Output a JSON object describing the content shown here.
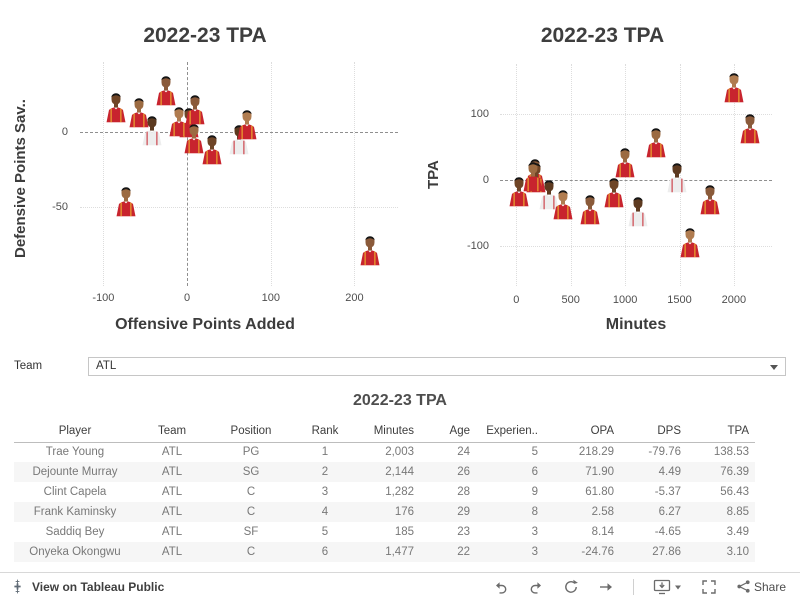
{
  "filter": {
    "label": "Team",
    "value": "ATL"
  },
  "toolbar": {
    "attribution": "View on Tableau Public",
    "share_label": "Share"
  },
  "accent": {
    "jersey_red": "#c8242e",
    "zero_line": "#8f8f8f",
    "grid": "#dddddd"
  },
  "chart_data": [
    {
      "type": "scatter",
      "title": "2022-23 TPA",
      "xlabel": "Offensive Points Added",
      "ylabel": "Defensive Points Sav..",
      "x_ticks": [
        -100,
        0,
        100,
        200
      ],
      "y_ticks": [
        0,
        -50
      ],
      "xlim": [
        -128,
        252
      ],
      "ylim": [
        -103,
        47
      ],
      "grid": "dotted",
      "legend": false,
      "zero_lines": {
        "x": true,
        "y": true
      },
      "marker": "player-photo",
      "points": [
        {
          "name": "Onyeka Okongwu",
          "x": -24.76,
          "y": 27.86
        },
        {
          "name": "Frank Kaminsky",
          "x": 2.58,
          "y": 6.27
        },
        {
          "name": "Saddiq Bey",
          "x": 8.14,
          "y": -4.65
        },
        {
          "name": "Clint Capela",
          "x": 61.8,
          "y": -5.37
        },
        {
          "name": "Dejounte Murray",
          "x": 71.9,
          "y": 4.49
        },
        {
          "name": "Trae Young",
          "x": 218.29,
          "y": -79.76
        },
        {
          "name": "",
          "x": -85,
          "y": 16
        },
        {
          "name": "",
          "x": -58,
          "y": 13
        },
        {
          "name": "",
          "x": -42,
          "y": 1
        },
        {
          "name": "",
          "x": -10,
          "y": 7
        },
        {
          "name": "",
          "x": 9,
          "y": 15
        },
        {
          "name": "",
          "x": 30,
          "y": -12
        },
        {
          "name": "",
          "x": -73,
          "y": -47
        }
      ]
    },
    {
      "type": "scatter",
      "title": "2022-23 TPA",
      "xlabel": "Minutes",
      "ylabel": "TPA",
      "x_ticks": [
        0,
        500,
        1000,
        1500,
        2000
      ],
      "y_ticks": [
        -100,
        0,
        100
      ],
      "xlim": [
        -150,
        2350
      ],
      "ylim": [
        -160,
        175
      ],
      "grid": "dotted",
      "legend": false,
      "zero_lines": {
        "x": false,
        "y": true
      },
      "marker": "player-photo",
      "points": [
        {
          "name": "Frank Kaminsky",
          "x": 176,
          "y": 8.85
        },
        {
          "name": "Saddiq Bey",
          "x": 185,
          "y": 3.49
        },
        {
          "name": "Clint Capela",
          "x": 1282,
          "y": 56.43
        },
        {
          "name": "Onyeka Okongwu",
          "x": 1477,
          "y": 3.1
        },
        {
          "name": "Trae Young",
          "x": 2003,
          "y": 138.53
        },
        {
          "name": "Dejounte Murray",
          "x": 2144,
          "y": 76.39
        },
        {
          "name": "",
          "x": 25,
          "y": -18
        },
        {
          "name": "",
          "x": 150,
          "y": 5
        },
        {
          "name": "",
          "x": 300,
          "y": -22
        },
        {
          "name": "",
          "x": 430,
          "y": -38
        },
        {
          "name": "",
          "x": 680,
          "y": -45
        },
        {
          "name": "",
          "x": 900,
          "y": -20
        },
        {
          "name": "",
          "x": 1000,
          "y": 26
        },
        {
          "name": "",
          "x": 1120,
          "y": -48
        },
        {
          "name": "",
          "x": 1600,
          "y": -95
        },
        {
          "name": "",
          "x": 1780,
          "y": -30
        }
      ]
    },
    {
      "type": "table",
      "title": "2022-23 TPA",
      "columns": [
        "Player",
        "Team",
        "Position",
        "Rank",
        "Minutes",
        "Age",
        "Experien..",
        "OPA",
        "DPS",
        "TPA"
      ],
      "rows": [
        [
          "Trae Young",
          "ATL",
          "PG",
          "1",
          "2,003",
          "24",
          "5",
          "218.29",
          "-79.76",
          "138.53"
        ],
        [
          "Dejounte Murray",
          "ATL",
          "SG",
          "2",
          "2,144",
          "26",
          "6",
          "71.90",
          "4.49",
          "76.39"
        ],
        [
          "Clint Capela",
          "ATL",
          "C",
          "3",
          "1,282",
          "28",
          "9",
          "61.80",
          "-5.37",
          "56.43"
        ],
        [
          "Frank Kaminsky",
          "ATL",
          "C",
          "4",
          "176",
          "29",
          "8",
          "2.58",
          "6.27",
          "8.85"
        ],
        [
          "Saddiq Bey",
          "ATL",
          "SF",
          "5",
          "185",
          "23",
          "3",
          "8.14",
          "-4.65",
          "3.49"
        ],
        [
          "Onyeka Okongwu",
          "ATL",
          "C",
          "6",
          "1,477",
          "22",
          "3",
          "-24.76",
          "27.86",
          "3.10"
        ]
      ]
    }
  ]
}
